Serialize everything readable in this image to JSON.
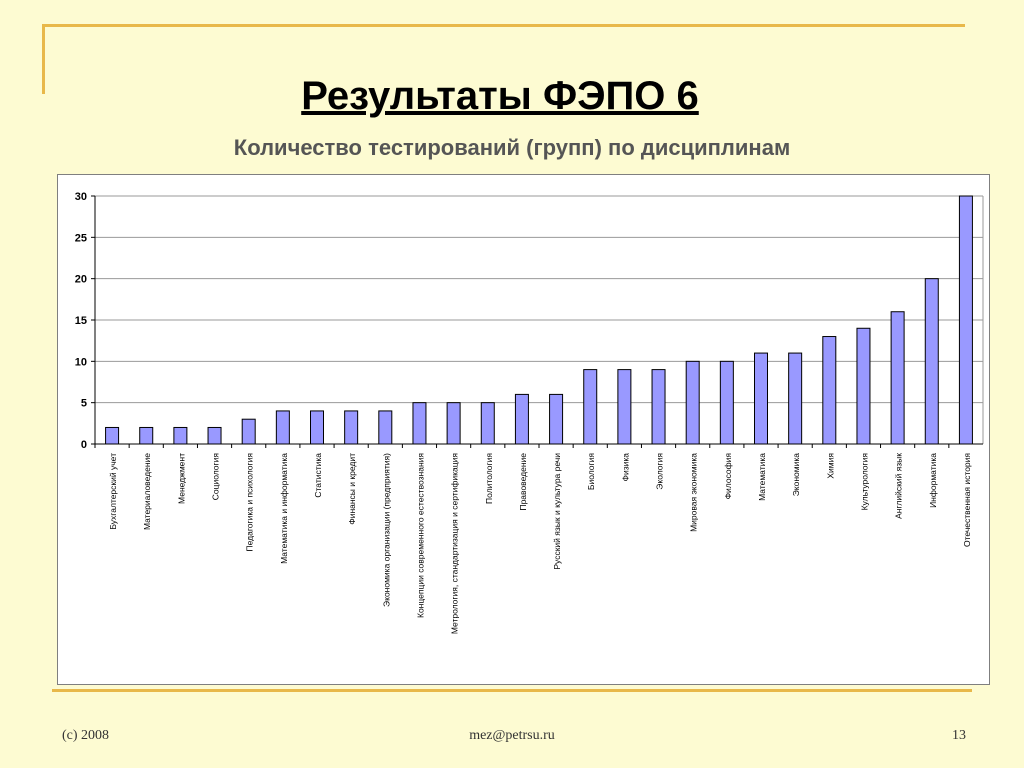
{
  "title": "Результаты ФЭПО 6",
  "subtitle": "Количество тестирований (групп) по дисциплинам",
  "footer": {
    "left": "(c) 2008",
    "center": "mez@petrsu.ru",
    "right": "13"
  },
  "colors": {
    "background": "#fdfbd2",
    "accent": "#e8b84a",
    "bar_fill": "#9999ff",
    "bar_stroke": "#000000"
  },
  "chart_data": {
    "type": "bar",
    "categories": [
      "Бухгалтерский учет",
      "Материаловедение",
      "Менеджмент",
      "Социология",
      "Педагогика и психология",
      "Математика и информатика",
      "Статистика",
      "Финансы и кредит",
      "Экономика организации (предприятия)",
      "Концепции современного естествознания",
      "Метрология, стандартизация и сертификация",
      "Политология",
      "Правоведение",
      "Русский язык и культура речи",
      "Биология",
      "Физика",
      "Экология",
      "Мировая экономика",
      "Философия",
      "Математика",
      "Экономика",
      "Химия",
      "Культурология",
      "Английский язык",
      "Информатика",
      "Отечественная история"
    ],
    "values": [
      2,
      2,
      2,
      2,
      3,
      4,
      4,
      4,
      4,
      5,
      5,
      5,
      6,
      6,
      9,
      9,
      9,
      10,
      10,
      11,
      11,
      13,
      14,
      16,
      20,
      31
    ],
    "yticks": [
      0,
      5,
      10,
      15,
      20,
      25,
      30
    ],
    "ylim": [
      0,
      30
    ],
    "grid": "horizontal",
    "legend": "none"
  }
}
